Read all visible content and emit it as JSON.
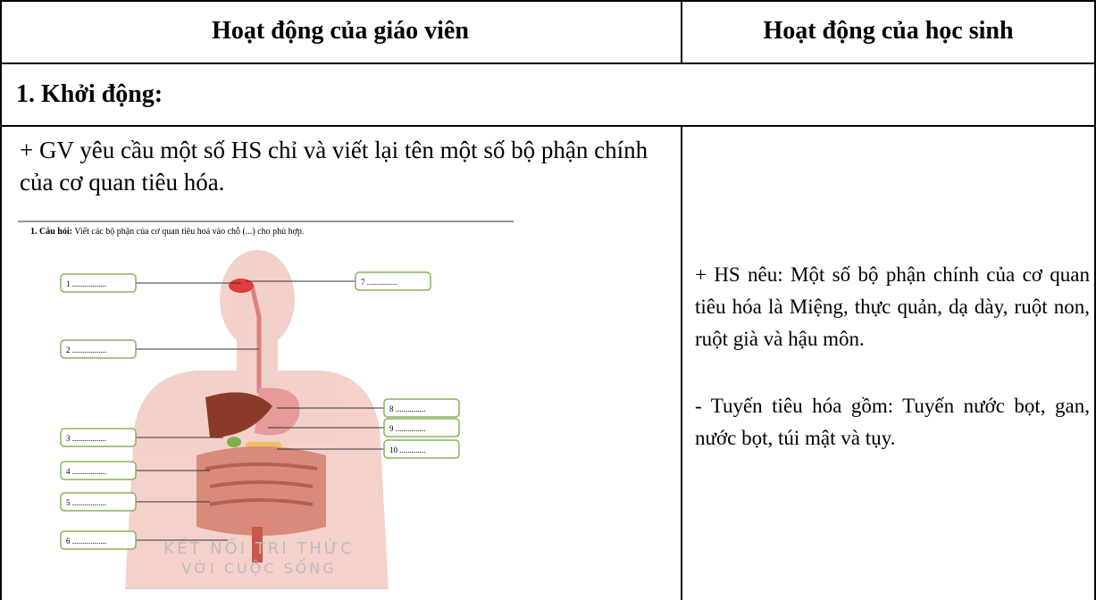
{
  "table": {
    "header": [
      "Hoạt động của giáo viên",
      "Hoạt động của học sinh"
    ],
    "section": "1. Khởi động:",
    "teacher": "+ GV yêu cầu một số HS chỉ và viết lại tên một số bộ phận chính của cơ quan tiêu hóa.",
    "figure": {
      "question_label": "1. Câu hỏi:",
      "question": "Viết các bộ phận của cơ quan tiêu hoá vào chỗ (...) cho phù hợp.",
      "labels": [
        "1 .................",
        "2 .................",
        "3 .................",
        "4 .................",
        "5 .................",
        "6 .................",
        "7 ...............",
        "8 ...............",
        "9 ...............",
        "10 ............."
      ],
      "watermark": [
        "KẾT NỐI TRI THỨC",
        "VỚI CUỘC SỐNG"
      ]
    },
    "student": [
      "+ HS nêu: Một số bộ phận chính của cơ quan tiêu hóa là Miệng, thực quản, dạ dày, ruột non, ruột già và hậu môn.",
      "- Tuyến tiêu hóa gồm: Tuyến nước bọt, gan, nước bọt, túi mật và tụy."
    ]
  }
}
